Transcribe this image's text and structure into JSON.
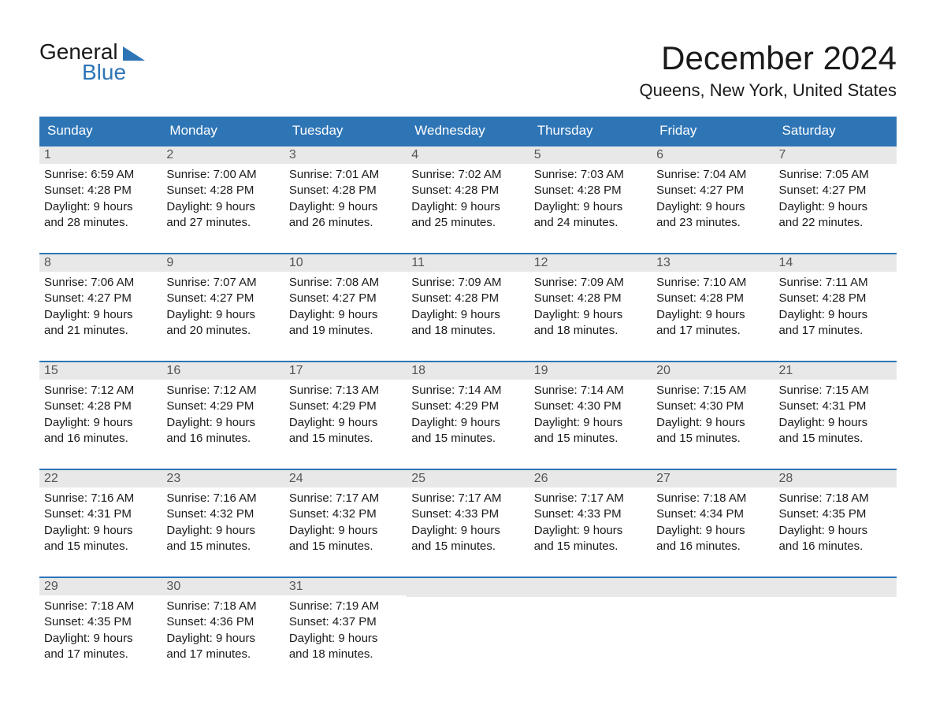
{
  "logo": {
    "word1": "General",
    "word2": "Blue"
  },
  "title": {
    "month": "December 2024",
    "location": "Queens, New York, United States"
  },
  "colors": {
    "header_bg": "#2e75b6",
    "header_text": "#ffffff",
    "daynum_bg": "#e8e8e8",
    "daynum_text": "#555555",
    "body_text": "#1a1a1a",
    "rule": "#2e75b6",
    "page_bg": "#ffffff",
    "accent": "#2e75b6"
  },
  "font": {
    "family": "Arial",
    "title_size_pt": 32,
    "location_size_pt": 17,
    "weekday_size_pt": 13,
    "body_size_pt": 11
  },
  "weekdays": [
    "Sunday",
    "Monday",
    "Tuesday",
    "Wednesday",
    "Thursday",
    "Friday",
    "Saturday"
  ],
  "weeks": [
    [
      {
        "n": "1",
        "sr": "Sunrise: 6:59 AM",
        "ss": "Sunset: 4:28 PM",
        "d1": "Daylight: 9 hours",
        "d2": "and 28 minutes."
      },
      {
        "n": "2",
        "sr": "Sunrise: 7:00 AM",
        "ss": "Sunset: 4:28 PM",
        "d1": "Daylight: 9 hours",
        "d2": "and 27 minutes."
      },
      {
        "n": "3",
        "sr": "Sunrise: 7:01 AM",
        "ss": "Sunset: 4:28 PM",
        "d1": "Daylight: 9 hours",
        "d2": "and 26 minutes."
      },
      {
        "n": "4",
        "sr": "Sunrise: 7:02 AM",
        "ss": "Sunset: 4:28 PM",
        "d1": "Daylight: 9 hours",
        "d2": "and 25 minutes."
      },
      {
        "n": "5",
        "sr": "Sunrise: 7:03 AM",
        "ss": "Sunset: 4:28 PM",
        "d1": "Daylight: 9 hours",
        "d2": "and 24 minutes."
      },
      {
        "n": "6",
        "sr": "Sunrise: 7:04 AM",
        "ss": "Sunset: 4:27 PM",
        "d1": "Daylight: 9 hours",
        "d2": "and 23 minutes."
      },
      {
        "n": "7",
        "sr": "Sunrise: 7:05 AM",
        "ss": "Sunset: 4:27 PM",
        "d1": "Daylight: 9 hours",
        "d2": "and 22 minutes."
      }
    ],
    [
      {
        "n": "8",
        "sr": "Sunrise: 7:06 AM",
        "ss": "Sunset: 4:27 PM",
        "d1": "Daylight: 9 hours",
        "d2": "and 21 minutes."
      },
      {
        "n": "9",
        "sr": "Sunrise: 7:07 AM",
        "ss": "Sunset: 4:27 PM",
        "d1": "Daylight: 9 hours",
        "d2": "and 20 minutes."
      },
      {
        "n": "10",
        "sr": "Sunrise: 7:08 AM",
        "ss": "Sunset: 4:27 PM",
        "d1": "Daylight: 9 hours",
        "d2": "and 19 minutes."
      },
      {
        "n": "11",
        "sr": "Sunrise: 7:09 AM",
        "ss": "Sunset: 4:28 PM",
        "d1": "Daylight: 9 hours",
        "d2": "and 18 minutes."
      },
      {
        "n": "12",
        "sr": "Sunrise: 7:09 AM",
        "ss": "Sunset: 4:28 PM",
        "d1": "Daylight: 9 hours",
        "d2": "and 18 minutes."
      },
      {
        "n": "13",
        "sr": "Sunrise: 7:10 AM",
        "ss": "Sunset: 4:28 PM",
        "d1": "Daylight: 9 hours",
        "d2": "and 17 minutes."
      },
      {
        "n": "14",
        "sr": "Sunrise: 7:11 AM",
        "ss": "Sunset: 4:28 PM",
        "d1": "Daylight: 9 hours",
        "d2": "and 17 minutes."
      }
    ],
    [
      {
        "n": "15",
        "sr": "Sunrise: 7:12 AM",
        "ss": "Sunset: 4:28 PM",
        "d1": "Daylight: 9 hours",
        "d2": "and 16 minutes."
      },
      {
        "n": "16",
        "sr": "Sunrise: 7:12 AM",
        "ss": "Sunset: 4:29 PM",
        "d1": "Daylight: 9 hours",
        "d2": "and 16 minutes."
      },
      {
        "n": "17",
        "sr": "Sunrise: 7:13 AM",
        "ss": "Sunset: 4:29 PM",
        "d1": "Daylight: 9 hours",
        "d2": "and 15 minutes."
      },
      {
        "n": "18",
        "sr": "Sunrise: 7:14 AM",
        "ss": "Sunset: 4:29 PM",
        "d1": "Daylight: 9 hours",
        "d2": "and 15 minutes."
      },
      {
        "n": "19",
        "sr": "Sunrise: 7:14 AM",
        "ss": "Sunset: 4:30 PM",
        "d1": "Daylight: 9 hours",
        "d2": "and 15 minutes."
      },
      {
        "n": "20",
        "sr": "Sunrise: 7:15 AM",
        "ss": "Sunset: 4:30 PM",
        "d1": "Daylight: 9 hours",
        "d2": "and 15 minutes."
      },
      {
        "n": "21",
        "sr": "Sunrise: 7:15 AM",
        "ss": "Sunset: 4:31 PM",
        "d1": "Daylight: 9 hours",
        "d2": "and 15 minutes."
      }
    ],
    [
      {
        "n": "22",
        "sr": "Sunrise: 7:16 AM",
        "ss": "Sunset: 4:31 PM",
        "d1": "Daylight: 9 hours",
        "d2": "and 15 minutes."
      },
      {
        "n": "23",
        "sr": "Sunrise: 7:16 AM",
        "ss": "Sunset: 4:32 PM",
        "d1": "Daylight: 9 hours",
        "d2": "and 15 minutes."
      },
      {
        "n": "24",
        "sr": "Sunrise: 7:17 AM",
        "ss": "Sunset: 4:32 PM",
        "d1": "Daylight: 9 hours",
        "d2": "and 15 minutes."
      },
      {
        "n": "25",
        "sr": "Sunrise: 7:17 AM",
        "ss": "Sunset: 4:33 PM",
        "d1": "Daylight: 9 hours",
        "d2": "and 15 minutes."
      },
      {
        "n": "26",
        "sr": "Sunrise: 7:17 AM",
        "ss": "Sunset: 4:33 PM",
        "d1": "Daylight: 9 hours",
        "d2": "and 15 minutes."
      },
      {
        "n": "27",
        "sr": "Sunrise: 7:18 AM",
        "ss": "Sunset: 4:34 PM",
        "d1": "Daylight: 9 hours",
        "d2": "and 16 minutes."
      },
      {
        "n": "28",
        "sr": "Sunrise: 7:18 AM",
        "ss": "Sunset: 4:35 PM",
        "d1": "Daylight: 9 hours",
        "d2": "and 16 minutes."
      }
    ],
    [
      {
        "n": "29",
        "sr": "Sunrise: 7:18 AM",
        "ss": "Sunset: 4:35 PM",
        "d1": "Daylight: 9 hours",
        "d2": "and 17 minutes."
      },
      {
        "n": "30",
        "sr": "Sunrise: 7:18 AM",
        "ss": "Sunset: 4:36 PM",
        "d1": "Daylight: 9 hours",
        "d2": "and 17 minutes."
      },
      {
        "n": "31",
        "sr": "Sunrise: 7:19 AM",
        "ss": "Sunset: 4:37 PM",
        "d1": "Daylight: 9 hours",
        "d2": "and 18 minutes."
      },
      null,
      null,
      null,
      null
    ]
  ]
}
